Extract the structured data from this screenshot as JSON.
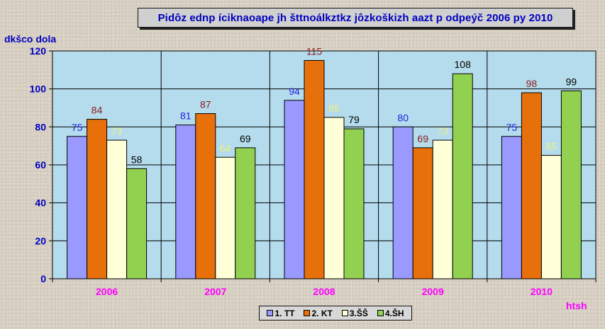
{
  "chart_data": {
    "type": "bar",
    "title": "Pidôz ednp íciknaoape jh šttnoálkztkz jôzkoškizh aazt p odpeýč 2006 py 2010",
    "ylabel": "dkšco dola",
    "xlabel": "htsh",
    "categories": [
      "2006",
      "2007",
      "2008",
      "2009",
      "2010"
    ],
    "ylim": [
      0,
      120
    ],
    "yticks": [
      0,
      20,
      40,
      60,
      80,
      100,
      120
    ],
    "grid": true,
    "legend_position": "bottom",
    "series": [
      {
        "name": "1. TT",
        "values": [
          75,
          81,
          94,
          80,
          75
        ],
        "color": "#9999ff",
        "label_color": "#2020e0"
      },
      {
        "name": "2. KT",
        "values": [
          84,
          87,
          115,
          69,
          98
        ],
        "color": "#e8700a",
        "label_color": "#8b1a1a"
      },
      {
        "name": "3.ŠŠ",
        "values": [
          73,
          64,
          85,
          73,
          65
        ],
        "color": "#ffffd8",
        "label_color": "#f0f080"
      },
      {
        "name": "4.ŠH",
        "values": [
          58,
          69,
          79,
          108,
          99
        ],
        "color": "#92d050",
        "label_color": "#000000"
      }
    ],
    "plot_background": "#b4dcec",
    "category_label_color": "#ff00ff"
  }
}
